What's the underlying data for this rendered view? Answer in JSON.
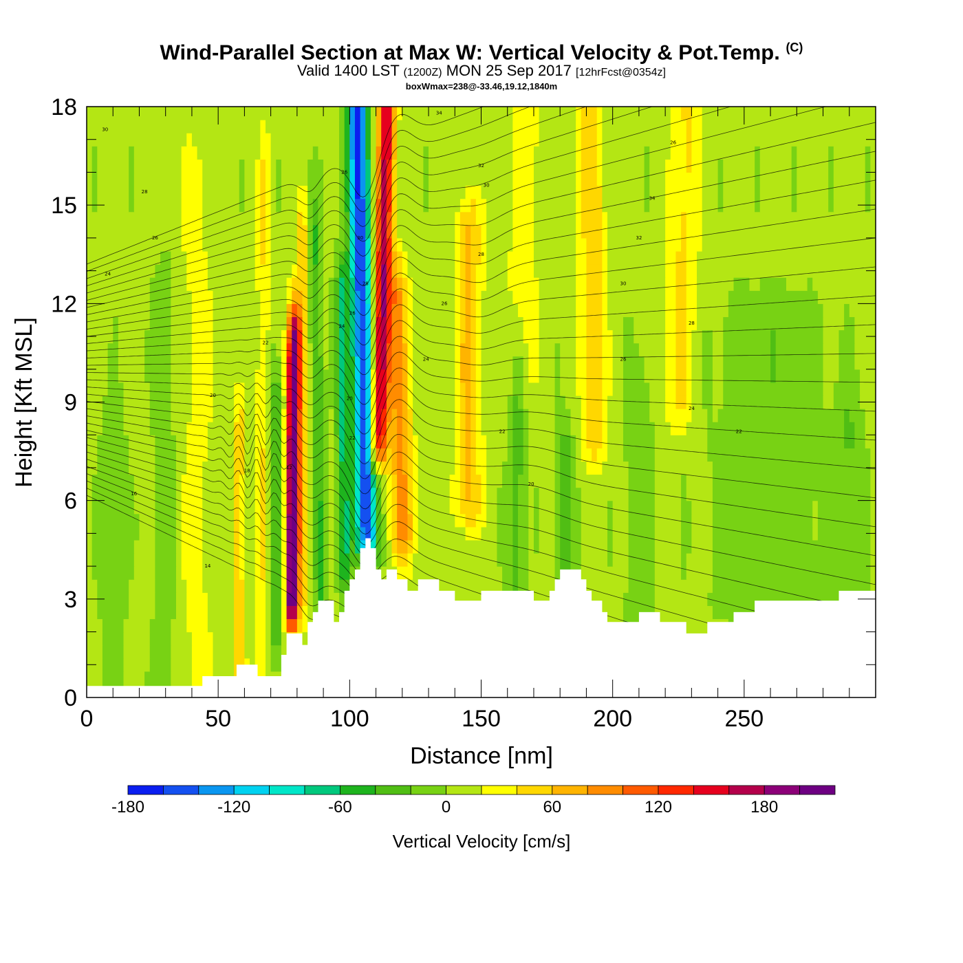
{
  "chart_data": {
    "type": "heatmap",
    "title": "Wind-Parallel Section at Max W: Vertical Velocity & Pot.Temp.",
    "title_suffix": "(C)",
    "subtitle": {
      "valid": "Valid 1400 LST",
      "utc": "(1200Z)",
      "date": "MON 25 Sep 2017",
      "fcst": "[12hrFcst@0354z]"
    },
    "box_wmax": "boxWmax=238@-33.46,19.12,1840m",
    "xlabel": "Distance [nm]",
    "ylabel": "Height [Kft MSL]",
    "xlim": [
      0,
      300
    ],
    "ylim": [
      0,
      18
    ],
    "x_ticks": [
      "0",
      "50",
      "100",
      "150",
      "200",
      "250"
    ],
    "y_ticks": [
      "0",
      "3",
      "6",
      "9",
      "12",
      "15",
      "18"
    ],
    "colorbar": {
      "title": "Vertical Velocity [cm/s]",
      "min": -180,
      "max": 220,
      "step": 20,
      "tick_labels": [
        "-180",
        "-120",
        "-60",
        "0",
        "60",
        "120",
        "180"
      ],
      "colors": [
        "#0a1ef0",
        "#1450f0",
        "#0a96f0",
        "#00d2f0",
        "#00e6c8",
        "#00c87d",
        "#1eb41e",
        "#50be14",
        "#78d214",
        "#b4e614",
        "#ffff00",
        "#ffd700",
        "#ffb400",
        "#ff8c00",
        "#ff5a00",
        "#ff2800",
        "#e6001e",
        "#b4004b",
        "#8c0078",
        "#6e0082"
      ]
    },
    "velocity_features": [
      {
        "kind": "updraft",
        "x_nm": 78,
        "z_kft_range": [
          3,
          10.5
        ],
        "peak_cms": 238
      },
      {
        "kind": "downdraft",
        "x_nm": 104,
        "z_kft_range": [
          5,
          18
        ],
        "peak_cms": -160
      },
      {
        "kind": "updraft",
        "x_nm": 115,
        "z_kft_range": [
          8,
          18
        ],
        "peak_cms": 180
      },
      {
        "kind": "weak_updraft",
        "x_nm": 148,
        "z_kft_range": [
          6,
          14
        ],
        "peak_cms": 60
      },
      {
        "kind": "weak_updraft",
        "x_nm": 195,
        "z_kft_range": [
          8,
          18
        ],
        "peak_cms": 40
      }
    ],
    "terrain_kft": [
      [
        0,
        0.35
      ],
      [
        40,
        0.35
      ],
      [
        44,
        0.65
      ],
      [
        56,
        0.65
      ],
      [
        57,
        1.0
      ],
      [
        62,
        1.0
      ],
      [
        65,
        0.65
      ],
      [
        72,
        0.65
      ],
      [
        74,
        1.3
      ],
      [
        76,
        1.95
      ],
      [
        80,
        1.95
      ],
      [
        82,
        1.6
      ],
      [
        84,
        2.3
      ],
      [
        86,
        2.6
      ],
      [
        88,
        2.95
      ],
      [
        92,
        2.95
      ],
      [
        94,
        2.3
      ],
      [
        96,
        2.6
      ],
      [
        98,
        3.25
      ],
      [
        100,
        3.6
      ],
      [
        102,
        3.9
      ],
      [
        104,
        4.55
      ],
      [
        106,
        4.85
      ],
      [
        108,
        4.55
      ],
      [
        110,
        3.9
      ],
      [
        112,
        3.6
      ],
      [
        114,
        3.9
      ],
      [
        116,
        3.9
      ],
      [
        118,
        3.6
      ],
      [
        122,
        3.25
      ],
      [
        126,
        3.6
      ],
      [
        132,
        3.6
      ],
      [
        134,
        3.25
      ],
      [
        138,
        3.25
      ],
      [
        140,
        2.95
      ],
      [
        148,
        2.95
      ],
      [
        150,
        3.25
      ],
      [
        168,
        3.25
      ],
      [
        170,
        2.95
      ],
      [
        174,
        2.95
      ],
      [
        176,
        3.25
      ],
      [
        178,
        3.6
      ],
      [
        180,
        3.9
      ],
      [
        186,
        3.9
      ],
      [
        188,
        3.6
      ],
      [
        190,
        3.25
      ],
      [
        192,
        2.95
      ],
      [
        196,
        2.6
      ],
      [
        198,
        2.3
      ],
      [
        208,
        2.3
      ],
      [
        210,
        2.6
      ],
      [
        216,
        2.6
      ],
      [
        218,
        2.3
      ],
      [
        226,
        2.3
      ],
      [
        228,
        1.95
      ],
      [
        234,
        1.95
      ],
      [
        236,
        2.3
      ],
      [
        244,
        2.3
      ],
      [
        246,
        2.6
      ],
      [
        252,
        2.6
      ],
      [
        254,
        2.95
      ],
      [
        284,
        2.95
      ],
      [
        286,
        3.25
      ],
      [
        300,
        3.25
      ]
    ],
    "isotherm_labels": [
      {
        "text": "30",
        "x": 7,
        "z": 17.3
      },
      {
        "text": "28",
        "x": 22,
        "z": 15.4
      },
      {
        "text": "26",
        "x": 26,
        "z": 14.0
      },
      {
        "text": "24",
        "x": 8,
        "z": 12.9
      },
      {
        "text": "22",
        "x": 68,
        "z": 10.8
      },
      {
        "text": "20",
        "x": 48,
        "z": 9.2
      },
      {
        "text": "18",
        "x": 61,
        "z": 6.9
      },
      {
        "text": "16",
        "x": 18,
        "z": 6.2
      },
      {
        "text": "14",
        "x": 46,
        "z": 4.0
      },
      {
        "text": "12",
        "x": 77,
        "z": 7.0
      },
      {
        "text": "26",
        "x": 98,
        "z": 16.0
      },
      {
        "text": "30",
        "x": 104,
        "z": 14.0
      },
      {
        "text": "28",
        "x": 106,
        "z": 12.6
      },
      {
        "text": "24",
        "x": 97,
        "z": 11.3
      },
      {
        "text": "26",
        "x": 101,
        "z": 11.7
      },
      {
        "text": "20",
        "x": 100,
        "z": 9.1
      },
      {
        "text": "22",
        "x": 101,
        "z": 7.9
      },
      {
        "text": "34",
        "x": 134,
        "z": 17.8
      },
      {
        "text": "32",
        "x": 150,
        "z": 16.2
      },
      {
        "text": "30",
        "x": 152,
        "z": 15.6
      },
      {
        "text": "28",
        "x": 150,
        "z": 13.5
      },
      {
        "text": "26",
        "x": 136,
        "z": 12.0
      },
      {
        "text": "24",
        "x": 129,
        "z": 10.3
      },
      {
        "text": "22",
        "x": 158,
        "z": 8.1
      },
      {
        "text": "20",
        "x": 169,
        "z": 6.5
      },
      {
        "text": "26",
        "x": 223,
        "z": 16.9
      },
      {
        "text": "34",
        "x": 215,
        "z": 15.2
      },
      {
        "text": "32",
        "x": 210,
        "z": 14.0
      },
      {
        "text": "30",
        "x": 204,
        "z": 12.6
      },
      {
        "text": "28",
        "x": 230,
        "z": 11.4
      },
      {
        "text": "26",
        "x": 204,
        "z": 10.3
      },
      {
        "text": "24",
        "x": 230,
        "z": 8.8
      },
      {
        "text": "22",
        "x": 248,
        "z": 8.1
      }
    ]
  }
}
